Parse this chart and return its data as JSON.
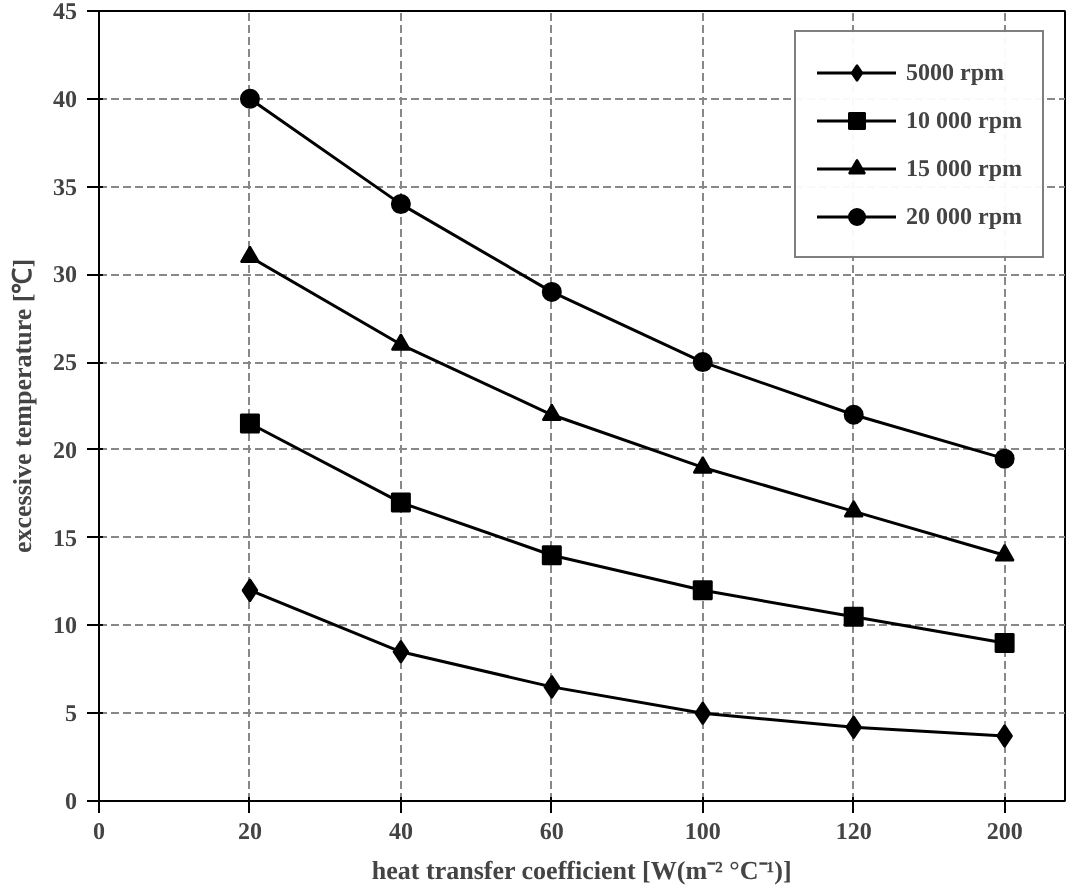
{
  "chart_data": {
    "type": "line",
    "xlabel": "heat transfer coefficient [W(m⁻² °C⁻¹)]",
    "ylabel": "excessive temperature [℃]",
    "categories": [
      "0",
      "20",
      "40",
      "60",
      "100",
      "120",
      "200"
    ],
    "ylim": [
      0,
      45
    ],
    "yticks": [
      0,
      5,
      10,
      15,
      20,
      25,
      30,
      35,
      40,
      45
    ],
    "grid": true,
    "legend": "top right",
    "line_style": "solid",
    "series": [
      {
        "name": "5000 rpm",
        "color": "#000000",
        "marker": "diamond",
        "values": [
          null,
          12,
          8.5,
          6.5,
          5,
          4.2,
          3.7
        ]
      },
      {
        "name": "10 000 rpm",
        "color": "#000000",
        "marker": "square",
        "values": [
          null,
          21.5,
          17,
          14,
          12,
          10.5,
          9
        ]
      },
      {
        "name": "15 000 rpm",
        "color": "#000000",
        "marker": "triangle",
        "values": [
          null,
          31,
          26,
          22,
          19,
          16.5,
          14
        ]
      },
      {
        "name": "20 000 rpm",
        "color": "#000000",
        "marker": "circle",
        "values": [
          null,
          40,
          34,
          29,
          25,
          22,
          19.5
        ]
      }
    ]
  }
}
